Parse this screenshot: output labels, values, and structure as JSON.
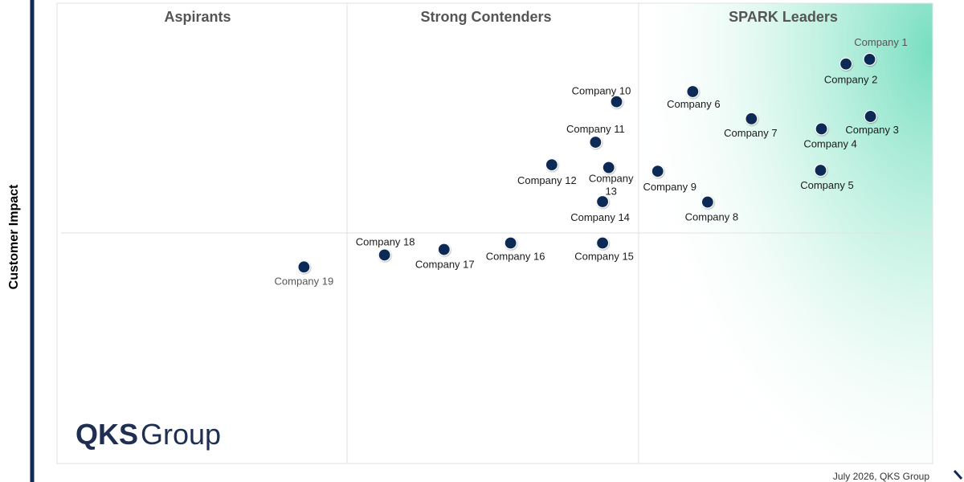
{
  "chart_data": {
    "type": "scatter",
    "quadrants": [
      {
        "label": "Aspirants"
      },
      {
        "label": "Strong Contenders"
      },
      {
        "label": "SPARK Leaders"
      }
    ],
    "ylabel": "Customer Impact",
    "xlim": [
      0,
      100
    ],
    "ylim": [
      0,
      100
    ],
    "grid": true,
    "colors": {
      "marker": "#102a56",
      "highlight": "#7fe0c3",
      "axis": "#102a56"
    },
    "points": [
      {
        "name": "Company 1",
        "x": 92.8,
        "y": 87.8
      },
      {
        "name": "Company 2",
        "x": 90.1,
        "y": 86.8
      },
      {
        "name": "Company 3",
        "x": 92.9,
        "y": 75.4
      },
      {
        "name": "Company 4",
        "x": 87.3,
        "y": 72.7
      },
      {
        "name": "Company 5",
        "x": 87.2,
        "y": 63.7
      },
      {
        "name": "Company 6",
        "x": 72.6,
        "y": 80.8
      },
      {
        "name": "Company 7",
        "x": 79.3,
        "y": 74.9
      },
      {
        "name": "Company 8",
        "x": 74.3,
        "y": 56.8
      },
      {
        "name": "Company 9",
        "x": 68.6,
        "y": 63.5
      },
      {
        "name": "Company 10",
        "x": 63.9,
        "y": 78.6
      },
      {
        "name": "Company 11",
        "x": 61.5,
        "y": 69.8
      },
      {
        "name": "Company 12",
        "x": 56.5,
        "y": 64.9
      },
      {
        "name": "Company 13",
        "x": 63.0,
        "y": 64.3
      },
      {
        "name": "Company 14",
        "x": 62.3,
        "y": 56.9
      },
      {
        "name": "Company 15",
        "x": 62.3,
        "y": 47.9
      },
      {
        "name": "Company 16",
        "x": 51.8,
        "y": 47.9
      },
      {
        "name": "Company 17",
        "x": 44.2,
        "y": 46.5
      },
      {
        "name": "Company 18",
        "x": 37.4,
        "y": 45.3
      },
      {
        "name": "Company 19",
        "x": 28.2,
        "y": 42.7
      }
    ]
  },
  "footer": {
    "credit": "July  2026, QKS Group"
  },
  "logo": {
    "bold_part": "QKS",
    "light_part": "Group"
  }
}
